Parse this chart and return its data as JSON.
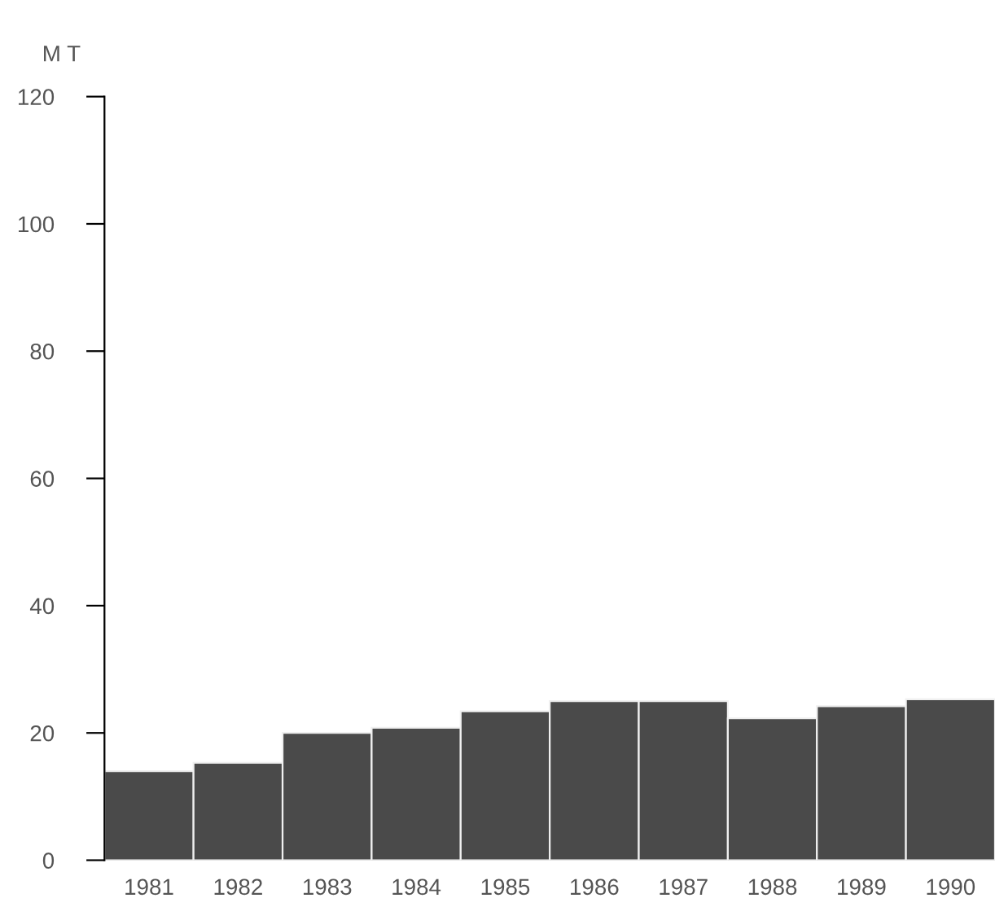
{
  "chart_data": {
    "type": "bar",
    "ylabel": "M T",
    "categories": [
      "1981",
      "1982",
      "1983",
      "1984",
      "1985",
      "1986",
      "1987",
      "1988",
      "1989",
      "1990"
    ],
    "values": [
      14,
      15.3,
      20,
      20.8,
      23.4,
      25,
      25,
      22.3,
      24.2,
      25.3
    ],
    "color": "#4a4a4a",
    "ylim": [
      0,
      120
    ],
    "yticks": [
      0,
      20,
      40,
      60,
      80,
      100,
      120
    ],
    "grid": false
  }
}
